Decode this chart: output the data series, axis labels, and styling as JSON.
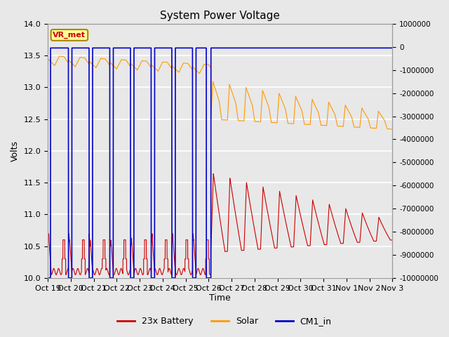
{
  "title": "System Power Voltage",
  "xlabel": "Time",
  "ylabel": "Volts",
  "ylim_left": [
    10.0,
    14.0
  ],
  "ylim_right": [
    -10000000,
    1000000
  ],
  "yticks_left": [
    10.0,
    10.5,
    11.0,
    11.5,
    12.0,
    12.5,
    13.0,
    13.5,
    14.0
  ],
  "yticks_right": [
    1000000,
    0,
    -1000000,
    -2000000,
    -3000000,
    -4000000,
    -5000000,
    -6000000,
    -7000000,
    -8000000,
    -9000000,
    -10000000
  ],
  "x_tick_labels": [
    "Oct 19",
    "Oct 20",
    "Oct 21",
    "Oct 22",
    "Oct 23",
    "Oct 24",
    "Oct 25",
    "Oct 26",
    "Oct 27",
    "Oct 28",
    "Oct 29",
    "Oct 30",
    "Oct 31",
    "Nov 1",
    "Nov 2",
    "Nov 3"
  ],
  "background_color": "#e8e8e8",
  "plot_bg_color": "#e8e8e8",
  "grid_color": "#ffffff",
  "legend_items": [
    "23x Battery",
    "Solar",
    "CM1_in"
  ],
  "legend_colors": [
    "#cc0000",
    "#ff9900",
    "#0000cc"
  ],
  "annotation_text": "VR_met",
  "annotation_color": "#cc0000",
  "annotation_bg": "#ffff99",
  "annotation_border": "#aa8800",
  "figsize": [
    6.4,
    4.8
  ],
  "dpi": 100
}
